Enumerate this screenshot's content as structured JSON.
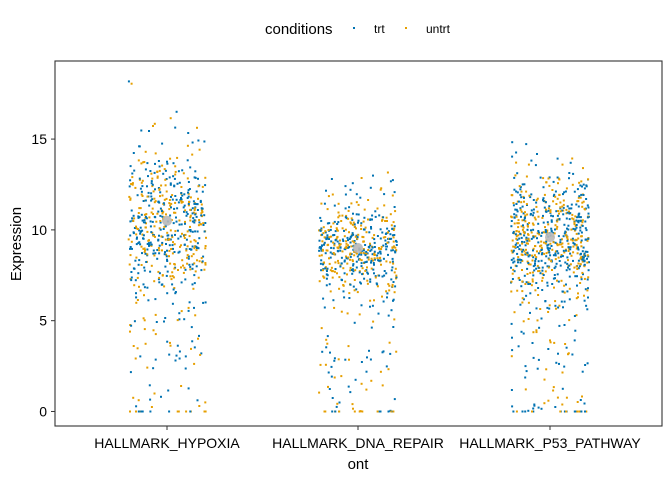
{
  "chart_data": {
    "type": "scatter",
    "title": "",
    "xlabel": "ont",
    "ylabel": "Expression",
    "categories": [
      "HALLMARK_HYPOXIA",
      "HALLMARK_DNA_REPAIR",
      "HALLMARK_P53_PATHWAY"
    ],
    "ylim": [
      -0.8,
      19.3
    ],
    "y_ticks": [
      0,
      5,
      10,
      15
    ],
    "grid": false,
    "legend": {
      "title": "conditions",
      "position": "top",
      "entries": [
        {
          "name": "trt",
          "color": "#0072B2"
        },
        {
          "name": "untrt",
          "color": "#E69F00"
        }
      ]
    },
    "series": [
      {
        "name": "trt",
        "color": "#0072B2"
      },
      {
        "name": "untrt",
        "color": "#E69F00"
      }
    ],
    "groups": [
      {
        "category": "HALLMARK_HYPOXIA",
        "center": 10.3,
        "median_marker": 10.5,
        "n_points": 650,
        "bulk_sd": 2.2,
        "min": 0,
        "max": 18.7
      },
      {
        "category": "HALLMARK_DNA_REPAIR",
        "center": 9.2,
        "median_marker": 9.0,
        "n_points": 600,
        "bulk_sd": 1.5,
        "min": 0,
        "max": 13.6
      },
      {
        "category": "HALLMARK_P53_PATHWAY",
        "center": 9.7,
        "median_marker": 9.6,
        "n_points": 800,
        "bulk_sd": 2.0,
        "min": 0,
        "max": 14.9
      }
    ]
  }
}
